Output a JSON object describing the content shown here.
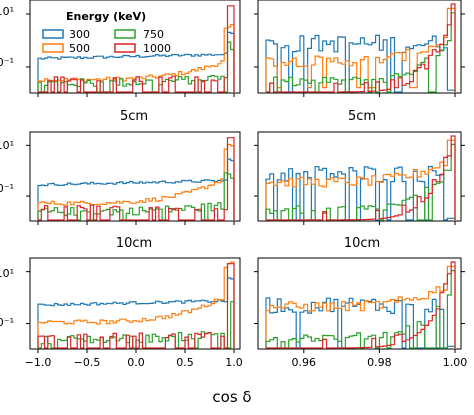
{
  "chart_data": {
    "type": "histogram-grid",
    "x_axis_label": "cos δ",
    "legend": {
      "title": "Energy (keV)",
      "entries": [
        {
          "label": "300",
          "color": "#1f77b4"
        },
        {
          "label": "500",
          "color": "#ff7f0e"
        },
        {
          "label": "750",
          "color": "#2ca02c"
        },
        {
          "label": "1000",
          "color": "#d62728"
        }
      ]
    },
    "left_xlim": [
      -1.0,
      1.0
    ],
    "left_xticks": [
      "−1.0",
      "−0.5",
      "0.0",
      "0.5",
      "1.0"
    ],
    "left_xtick_values": [
      -1.0,
      -0.5,
      0.0,
      0.5,
      1.0
    ],
    "right_xlim": [
      0.95,
      1.0
    ],
    "right_xticks": [
      "0.96",
      "0.98",
      "1.00"
    ],
    "right_xtick_values": [
      0.96,
      0.98,
      1.0
    ],
    "y_scale": "log",
    "y_tick_labels": [
      "10¹",
      "10⁻¹"
    ],
    "rows": [
      {
        "title": "",
        "row_index": 0
      },
      {
        "title": "5cm",
        "row_index": 1
      },
      {
        "title": "10cm",
        "row_index": 2
      }
    ]
  }
}
